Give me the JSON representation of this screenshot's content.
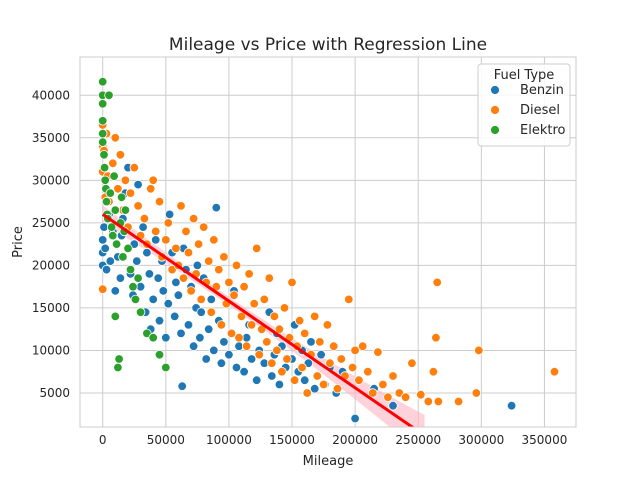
{
  "chart_data": {
    "type": "scatter",
    "title": "Mileage vs Price with Regression Line",
    "xlabel": "Mileage",
    "ylabel": "Price",
    "xlim": [
      -18000,
      375000
    ],
    "ylim": [
      1000,
      44500
    ],
    "xticks": [
      0,
      50000,
      100000,
      150000,
      200000,
      250000,
      300000,
      350000
    ],
    "yticks": [
      5000,
      10000,
      15000,
      20000,
      25000,
      30000,
      35000,
      40000
    ],
    "grid": true,
    "legend": {
      "title": "Fuel Type",
      "placement": "top-right"
    },
    "regression": {
      "x": [
        0,
        255000
      ],
      "y": [
        26000,
        0
      ],
      "color": "#ff0000",
      "ci_color": "#ffb3c1"
    },
    "series": [
      {
        "name": "Benzin",
        "color": "#1f77b4",
        "points": [
          [
            0,
            20000
          ],
          [
            0,
            21500
          ],
          [
            0,
            23000
          ],
          [
            1000,
            24500
          ],
          [
            2000,
            22000
          ],
          [
            3000,
            19500
          ],
          [
            5000,
            26000
          ],
          [
            6000,
            20500
          ],
          [
            8000,
            24000
          ],
          [
            10000,
            17000
          ],
          [
            12000,
            21000
          ],
          [
            14000,
            18500
          ],
          [
            15000,
            23500
          ],
          [
            16000,
            25500
          ],
          [
            18000,
            28500
          ],
          [
            20000,
            31500
          ],
          [
            22000,
            19000
          ],
          [
            24000,
            16500
          ],
          [
            25000,
            22500
          ],
          [
            27000,
            20500
          ],
          [
            28000,
            29500
          ],
          [
            30000,
            17500
          ],
          [
            32000,
            24500
          ],
          [
            34000,
            14500
          ],
          [
            35000,
            21500
          ],
          [
            37000,
            19000
          ],
          [
            38000,
            12500
          ],
          [
            40000,
            16000
          ],
          [
            42000,
            23000
          ],
          [
            44000,
            18500
          ],
          [
            45000,
            13500
          ],
          [
            47000,
            20500
          ],
          [
            48000,
            17000
          ],
          [
            50000,
            11500
          ],
          [
            52000,
            15500
          ],
          [
            53000,
            26000
          ],
          [
            55000,
            21500
          ],
          [
            57000,
            14000
          ],
          [
            58000,
            18000
          ],
          [
            60000,
            16500
          ],
          [
            62000,
            12000
          ],
          [
            63000,
            5800
          ],
          [
            64000,
            22000
          ],
          [
            66000,
            19500
          ],
          [
            68000,
            13000
          ],
          [
            70000,
            17500
          ],
          [
            72000,
            10500
          ],
          [
            74000,
            15000
          ],
          [
            75000,
            20000
          ],
          [
            77000,
            11500
          ],
          [
            78000,
            14500
          ],
          [
            80000,
            18500
          ],
          [
            82000,
            9000
          ],
          [
            84000,
            12500
          ],
          [
            86000,
            16000
          ],
          [
            88000,
            10000
          ],
          [
            90000,
            26800
          ],
          [
            92000,
            13500
          ],
          [
            94000,
            8500
          ],
          [
            96000,
            11000
          ],
          [
            98000,
            15500
          ],
          [
            100000,
            9500
          ],
          [
            102000,
            12000
          ],
          [
            104000,
            17000
          ],
          [
            106000,
            8000
          ],
          [
            108000,
            10500
          ],
          [
            110000,
            14000
          ],
          [
            112000,
            7500
          ],
          [
            114000,
            11500
          ],
          [
            116000,
            13000
          ],
          [
            118000,
            9000
          ],
          [
            120000,
            15500
          ],
          [
            122000,
            6500
          ],
          [
            124000,
            10000
          ],
          [
            126000,
            12500
          ],
          [
            128000,
            8500
          ],
          [
            130000,
            11000
          ],
          [
            132000,
            14500
          ],
          [
            134000,
            7000
          ],
          [
            136000,
            9500
          ],
          [
            138000,
            12000
          ],
          [
            140000,
            6000
          ],
          [
            142000,
            10500
          ],
          [
            145000,
            8000
          ],
          [
            148000,
            11500
          ],
          [
            150000,
            9000
          ],
          [
            152000,
            13000
          ],
          [
            155000,
            7500
          ],
          [
            158000,
            10000
          ],
          [
            160000,
            6500
          ],
          [
            163000,
            8500
          ],
          [
            165000,
            11000
          ],
          [
            168000,
            5500
          ],
          [
            170000,
            7000
          ],
          [
            173000,
            9500
          ],
          [
            176000,
            6000
          ],
          [
            180000,
            8000
          ],
          [
            185000,
            5000
          ],
          [
            190000,
            7500
          ],
          [
            200000,
            2000
          ],
          [
            215000,
            5500
          ],
          [
            230000,
            3500
          ],
          [
            324000,
            3500
          ]
        ]
      },
      {
        "name": "Diesel",
        "color": "#ff7f0e",
        "points": [
          [
            0,
            17200
          ],
          [
            0,
            31000
          ],
          [
            0,
            34000
          ],
          [
            0,
            36500
          ],
          [
            1000,
            33500
          ],
          [
            2000,
            28000
          ],
          [
            3000,
            35500
          ],
          [
            4000,
            30500
          ],
          [
            5000,
            27500
          ],
          [
            8000,
            32000
          ],
          [
            10000,
            35000
          ],
          [
            12000,
            29000
          ],
          [
            14000,
            33000
          ],
          [
            16000,
            26500
          ],
          [
            18000,
            30000
          ],
          [
            20000,
            24500
          ],
          [
            22000,
            28500
          ],
          [
            25000,
            31500
          ],
          [
            28000,
            27000
          ],
          [
            30000,
            23500
          ],
          [
            33000,
            25500
          ],
          [
            35000,
            22500
          ],
          [
            38000,
            29000
          ],
          [
            40000,
            30000
          ],
          [
            42000,
            24000
          ],
          [
            45000,
            27500
          ],
          [
            47000,
            21000
          ],
          [
            50000,
            23000
          ],
          [
            52000,
            25000
          ],
          [
            55000,
            19500
          ],
          [
            58000,
            22000
          ],
          [
            60000,
            20000
          ],
          [
            62000,
            27000
          ],
          [
            64000,
            18500
          ],
          [
            66000,
            24000
          ],
          [
            68000,
            21500
          ],
          [
            70000,
            17000
          ],
          [
            72000,
            25500
          ],
          [
            74000,
            19000
          ],
          [
            76000,
            22500
          ],
          [
            78000,
            16000
          ],
          [
            80000,
            24500
          ],
          [
            82000,
            18000
          ],
          [
            84000,
            20500
          ],
          [
            86000,
            14500
          ],
          [
            88000,
            23000
          ],
          [
            90000,
            17500
          ],
          [
            92000,
            19500
          ],
          [
            94000,
            13000
          ],
          [
            96000,
            21000
          ],
          [
            98000,
            15500
          ],
          [
            100000,
            18000
          ],
          [
            102000,
            12000
          ],
          [
            104000,
            16500
          ],
          [
            106000,
            20000
          ],
          [
            108000,
            11500
          ],
          [
            110000,
            14000
          ],
          [
            112000,
            17500
          ],
          [
            114000,
            10500
          ],
          [
            116000,
            19000
          ],
          [
            118000,
            13000
          ],
          [
            120000,
            15500
          ],
          [
            122000,
            22000
          ],
          [
            124000,
            9500
          ],
          [
            126000,
            12500
          ],
          [
            128000,
            16000
          ],
          [
            130000,
            11000
          ],
          [
            132000,
            18500
          ],
          [
            134000,
            8500
          ],
          [
            136000,
            14000
          ],
          [
            138000,
            10000
          ],
          [
            140000,
            12500
          ],
          [
            142000,
            7500
          ],
          [
            144000,
            15000
          ],
          [
            146000,
            9000
          ],
          [
            148000,
            11500
          ],
          [
            150000,
            18000
          ],
          [
            152000,
            6500
          ],
          [
            154000,
            10500
          ],
          [
            156000,
            13500
          ],
          [
            158000,
            8000
          ],
          [
            160000,
            12000
          ],
          [
            162000,
            5000
          ],
          [
            165000,
            9500
          ],
          [
            168000,
            14000
          ],
          [
            170000,
            7000
          ],
          [
            172000,
            11000
          ],
          [
            175000,
            6000
          ],
          [
            178000,
            13000
          ],
          [
            180000,
            8500
          ],
          [
            183000,
            10500
          ],
          [
            186000,
            5500
          ],
          [
            189000,
            9000
          ],
          [
            192000,
            7000
          ],
          [
            195000,
            16000
          ],
          [
            198000,
            8000
          ],
          [
            200000,
            10000
          ],
          [
            203000,
            6500
          ],
          [
            206000,
            10500
          ],
          [
            210000,
            7500
          ],
          [
            214000,
            5000
          ],
          [
            218000,
            9800
          ],
          [
            222000,
            6000
          ],
          [
            226000,
            4500
          ],
          [
            230000,
            7000
          ],
          [
            235000,
            5000
          ],
          [
            240000,
            4500
          ],
          [
            245000,
            8500
          ],
          [
            252000,
            4800
          ],
          [
            258000,
            4000
          ],
          [
            262000,
            7500
          ],
          [
            264000,
            11500
          ],
          [
            265000,
            18000
          ],
          [
            266000,
            4000
          ],
          [
            282000,
            4000
          ],
          [
            296000,
            5000
          ],
          [
            298000,
            10000
          ],
          [
            358000,
            7500
          ]
        ]
      },
      {
        "name": "Elektro",
        "color": "#2ca02c",
        "points": [
          [
            0,
            41600
          ],
          [
            0,
            40000
          ],
          [
            0,
            39000
          ],
          [
            0,
            37000
          ],
          [
            0,
            35500
          ],
          [
            0,
            34500
          ],
          [
            1000,
            33000
          ],
          [
            1500,
            31500
          ],
          [
            2000,
            30000
          ],
          [
            2500,
            29000
          ],
          [
            3000,
            27500
          ],
          [
            3500,
            26000
          ],
          [
            4000,
            25500
          ],
          [
            5000,
            40000
          ],
          [
            6000,
            28500
          ],
          [
            7000,
            24500
          ],
          [
            8000,
            23500
          ],
          [
            9000,
            30500
          ],
          [
            10000,
            26500
          ],
          [
            10000,
            14000
          ],
          [
            11000,
            22500
          ],
          [
            12000,
            8000
          ],
          [
            13000,
            9000
          ],
          [
            14000,
            25000
          ],
          [
            15000,
            28000
          ],
          [
            16000,
            21000
          ],
          [
            17000,
            24000
          ],
          [
            18000,
            26500
          ],
          [
            20000,
            22000
          ],
          [
            22000,
            19500
          ],
          [
            24000,
            17500
          ],
          [
            26000,
            16000
          ],
          [
            28000,
            18500
          ],
          [
            30000,
            14500
          ],
          [
            35000,
            12000
          ],
          [
            40000,
            11500
          ],
          [
            45000,
            9500
          ],
          [
            50000,
            8000
          ]
        ]
      }
    ]
  }
}
